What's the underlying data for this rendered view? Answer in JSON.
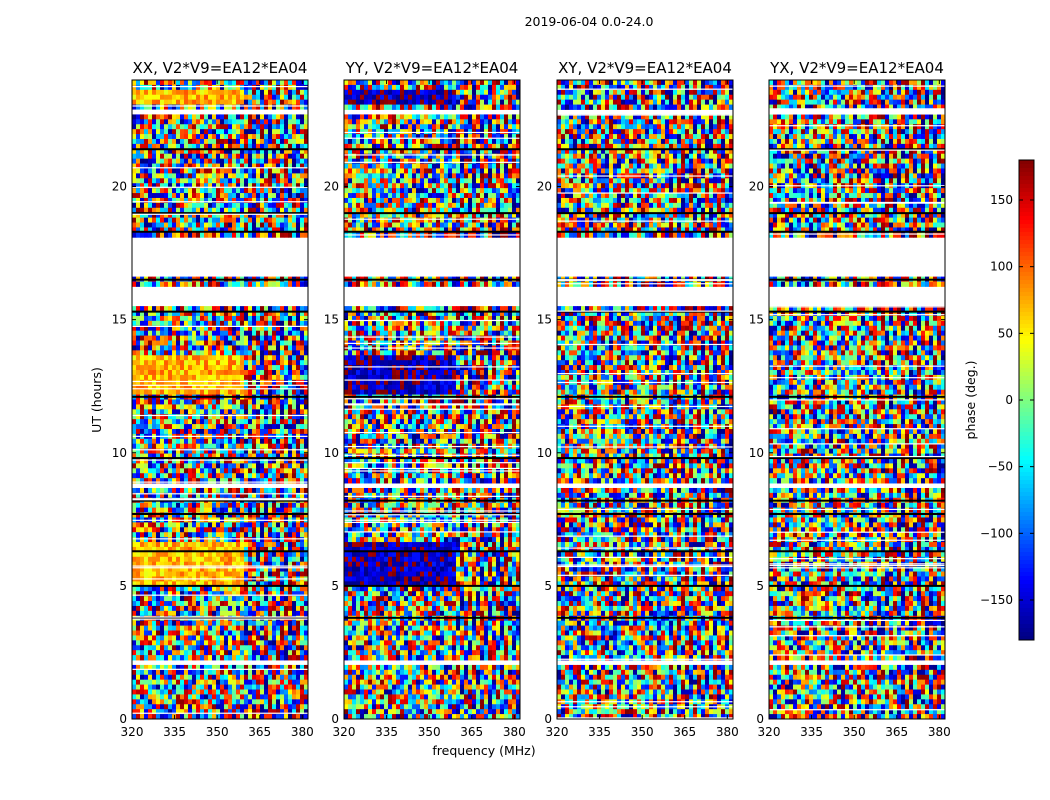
{
  "chart_data": {
    "type": "heatmap",
    "suptitle": "2019-06-04 0.0-24.0",
    "xlabel": "frequency (MHz)",
    "ylabel": "UT (hours)",
    "xlim": [
      320,
      382
    ],
    "ylim": [
      0,
      24
    ],
    "xticks": [
      320,
      335,
      350,
      365,
      380
    ],
    "yticks": [
      0,
      5,
      10,
      15,
      20
    ],
    "colorbar": {
      "label": "phase (deg.)",
      "range": [
        -180,
        180
      ],
      "ticks": [
        -150,
        -100,
        -50,
        0,
        50,
        100,
        150
      ],
      "tick_labels": [
        "−150",
        "−100",
        "−50",
        "0",
        "50",
        "100",
        "150"
      ],
      "colormap": "jet"
    },
    "panels": [
      {
        "title": "XX, V2*V9=EA12*EA04",
        "bias_phase": 70
      },
      {
        "title": "YY, V2*V9=EA12*EA04",
        "bias_phase": -160
      },
      {
        "title": "XY, V2*V9=EA12*EA04",
        "bias_phase": null
      },
      {
        "title": "YX, V2*V9=EA12*EA04",
        "bias_phase": null
      }
    ],
    "flagged_ut_ranges": [
      [
        16.7,
        18.1
      ],
      [
        15.6,
        16.2
      ],
      [
        14.7,
        14.8
      ],
      [
        11.6,
        11.7
      ],
      [
        8.6,
        8.8
      ],
      [
        2.1,
        2.25
      ],
      [
        1.6,
        1.7
      ],
      [
        0.5,
        0.55
      ],
      [
        6.8,
        6.9
      ],
      [
        22.7,
        22.8
      ]
    ],
    "black_flag_ut": [
      18.3,
      16.5,
      15.3,
      12.1,
      9.8,
      8.2,
      7.7,
      6.3,
      5.0,
      3.8,
      21.4,
      19.0
    ],
    "strong_bias_ut_ranges": [
      [
        12.1,
        13.6
      ],
      [
        6.1,
        6.6
      ],
      [
        4.9,
        6.0
      ],
      [
        23.0,
        23.6
      ]
    ]
  }
}
